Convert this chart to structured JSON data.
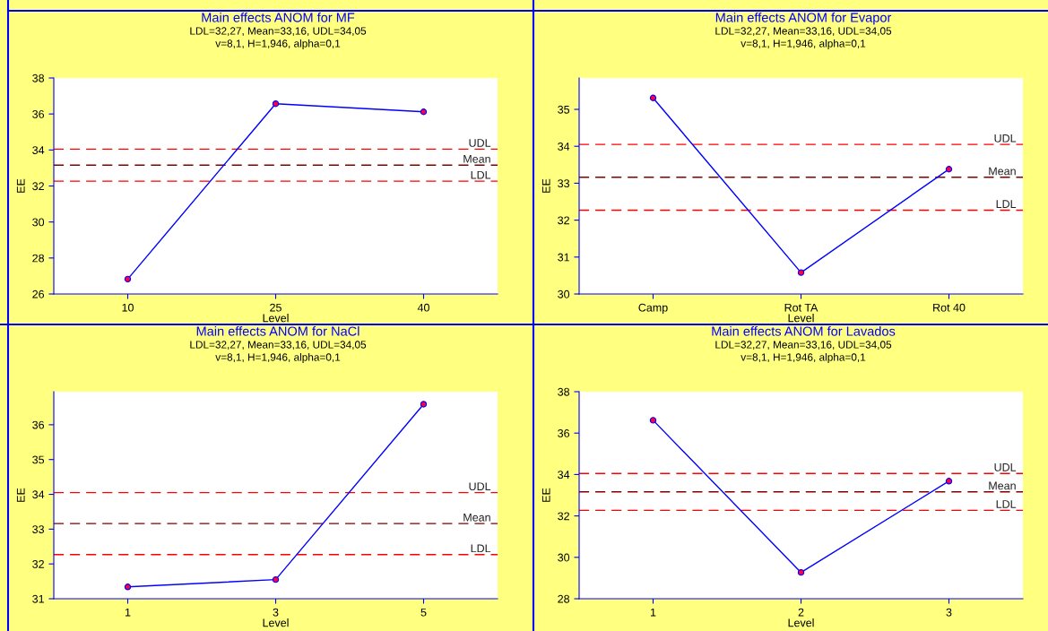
{
  "chart_data": [
    {
      "type": "line",
      "title": "Main effects ANOM for MF",
      "subtitle": "LDL=32,27, Mean=33,16, UDL=34,05\nv=8,1, H=1,946, alpha=0,1",
      "xlabel": "Level",
      "ylabel": "EE",
      "categories": [
        "10",
        "25",
        "40"
      ],
      "series": [
        {
          "color": "#0000ff",
          "values": [
            26.83,
            36.57,
            36.12
          ]
        }
      ],
      "ylim": [
        26,
        38
      ],
      "yticks": [
        26,
        28,
        30,
        32,
        34,
        36,
        38
      ],
      "marker": "circle",
      "line_style": "solid",
      "grid": false,
      "ref_lines": [
        {
          "axis": "y",
          "value": 34.05,
          "label": "UDL",
          "color": "#ff0000",
          "line_style": "dashed"
        },
        {
          "axis": "y",
          "value": 33.16,
          "label": "Mean",
          "color": "#800000",
          "line_style": "dashed"
        },
        {
          "axis": "y",
          "value": 32.27,
          "label": "LDL",
          "color": "#ff0000",
          "line_style": "dashed"
        }
      ]
    },
    {
      "type": "line",
      "title": "Main effects ANOM for Evapor",
      "subtitle": "LDL=32,27, Mean=33,16, UDL=34,05\nv=8,1, H=1,946, alpha=0,1",
      "xlabel": "Level",
      "ylabel": "EE",
      "categories": [
        "Camp",
        "Rot TA",
        "Rot 40"
      ],
      "series": [
        {
          "color": "#0000ff",
          "values": [
            35.31,
            30.58,
            33.38
          ]
        }
      ],
      "ylim": [
        30,
        35.85
      ],
      "yticks": [
        30,
        31,
        32,
        33,
        34,
        35
      ],
      "marker": "circle",
      "line_style": "solid",
      "grid": false,
      "ref_lines": [
        {
          "axis": "y",
          "value": 34.05,
          "label": "UDL",
          "color": "#ff0000",
          "line_style": "dashed"
        },
        {
          "axis": "y",
          "value": 33.16,
          "label": "Mean",
          "color": "#800000",
          "line_style": "dashed"
        },
        {
          "axis": "y",
          "value": 32.27,
          "label": "LDL",
          "color": "#ff0000",
          "line_style": "dashed"
        }
      ]
    },
    {
      "type": "line",
      "title": "Main effects ANOM for NaCl",
      "subtitle": "LDL=32,27, Mean=33,16, UDL=34,05\nv=8,1, H=1,946, alpha=0,1",
      "xlabel": "Level",
      "ylabel": "EE",
      "categories": [
        "1",
        "3",
        "5"
      ],
      "series": [
        {
          "color": "#0000ff",
          "values": [
            31.34,
            31.55,
            36.59
          ]
        }
      ],
      "ylim": [
        31,
        36.95
      ],
      "yticks": [
        31,
        32,
        33,
        34,
        35,
        36
      ],
      "marker": "circle",
      "line_style": "solid",
      "grid": false,
      "ref_lines": [
        {
          "axis": "y",
          "value": 34.05,
          "label": "UDL",
          "color": "#ff0000",
          "line_style": "dashed"
        },
        {
          "axis": "y",
          "value": 33.16,
          "label": "Mean",
          "color": "#800000",
          "line_style": "dashed"
        },
        {
          "axis": "y",
          "value": 32.27,
          "label": "LDL",
          "color": "#ff0000",
          "line_style": "dashed"
        }
      ]
    },
    {
      "type": "line",
      "title": "Main effects ANOM for Lavados",
      "subtitle": "LDL=32,27, Mean=33,16, UDL=34,05\nv=8,1, H=1,946, alpha=0,1",
      "xlabel": "Level",
      "ylabel": "EE",
      "categories": [
        "1",
        "2",
        "3"
      ],
      "series": [
        {
          "color": "#0000ff",
          "values": [
            36.62,
            29.27,
            33.68
          ]
        }
      ],
      "ylim": [
        28,
        38
      ],
      "yticks": [
        28,
        30,
        32,
        34,
        36,
        38
      ],
      "marker": "circle",
      "line_style": "solid",
      "grid": false,
      "ref_lines": [
        {
          "axis": "y",
          "value": 34.05,
          "label": "UDL",
          "color": "#ff0000",
          "line_style": "dashed"
        },
        {
          "axis": "y",
          "value": 33.16,
          "label": "Mean",
          "color": "#800000",
          "line_style": "dashed"
        },
        {
          "axis": "y",
          "value": 32.27,
          "label": "LDL",
          "color": "#ff0000",
          "line_style": "dashed"
        }
      ]
    }
  ]
}
